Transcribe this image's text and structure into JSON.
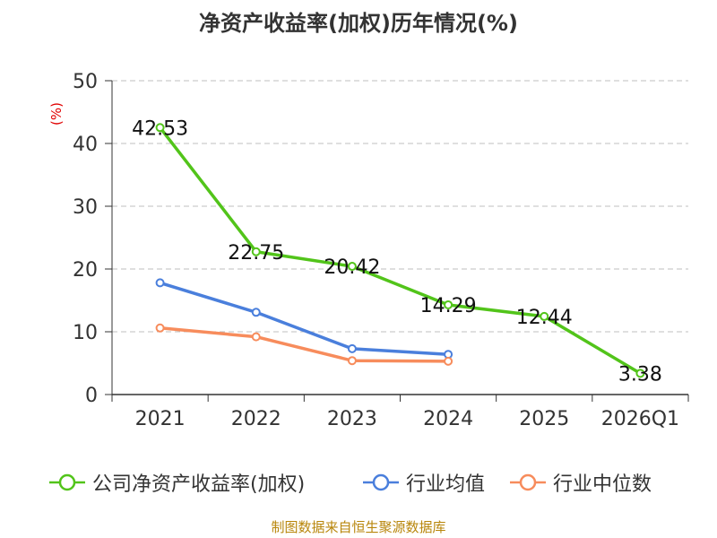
{
  "chart_data": {
    "type": "line",
    "title": "净资产收益率(加权)历年情况(%)",
    "ylabel": "(%)",
    "xlabel": "",
    "ylim": [
      0,
      50
    ],
    "yticks": [
      0,
      10,
      20,
      30,
      40,
      50
    ],
    "categories": [
      "2021",
      "2022",
      "2023",
      "2024",
      "2025",
      "2026Q1"
    ],
    "grid": true,
    "legend_position": "bottom",
    "series": [
      {
        "name": "公司净资产收益率(加权)",
        "color": "#52c41a",
        "values": [
          42.53,
          22.75,
          20.42,
          14.29,
          12.44,
          3.38
        ],
        "labels": [
          "42.53",
          "22.75",
          "20.42",
          "14.29",
          "12.44",
          "3.38"
        ]
      },
      {
        "name": "行业均值",
        "color": "#4a7fdc",
        "values": [
          17.8,
          13.1,
          7.3,
          6.4,
          null,
          null
        ]
      },
      {
        "name": "行业中位数",
        "color": "#f78c5c",
        "values": [
          10.6,
          9.2,
          5.4,
          5.3,
          null,
          null
        ]
      }
    ]
  },
  "source_note": "制图数据来自恒生聚源数据库"
}
